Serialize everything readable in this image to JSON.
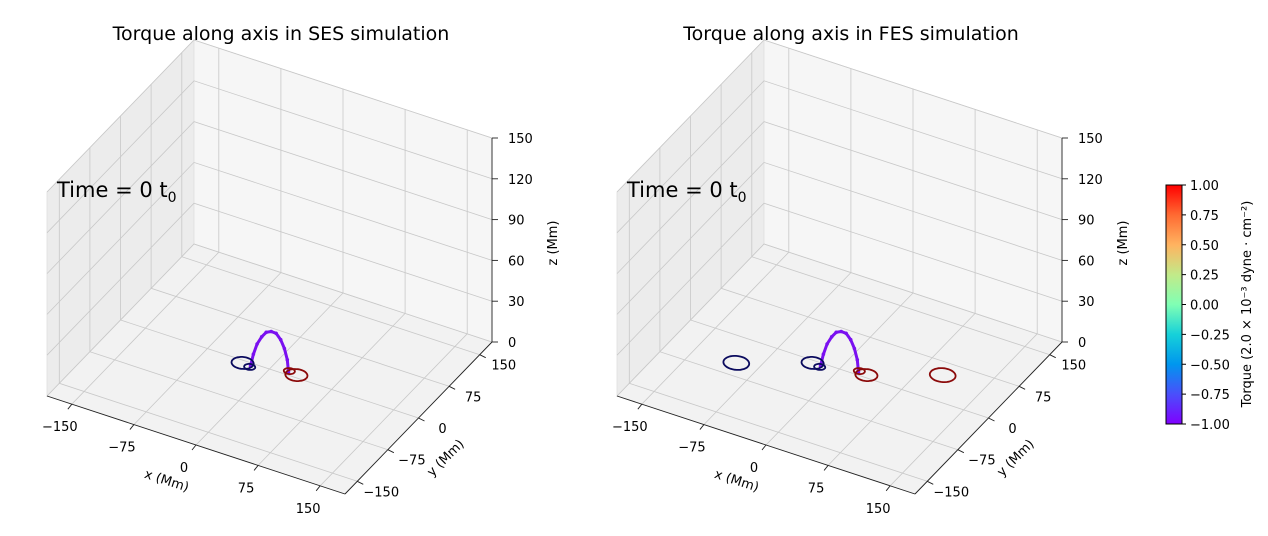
{
  "chart_data": [
    {
      "type": "3d-line",
      "title": "Torque along axis in SES simulation",
      "time_label": "Time = 0 t",
      "time_subscript": "0",
      "xlabel": "x (Mm)",
      "ylabel": "y (Mm)",
      "zlabel": "z (Mm)",
      "x_ticks": [
        "−150",
        "−75",
        "0",
        "75",
        "150"
      ],
      "y_ticks": [
        "−150",
        "−75",
        "0",
        "75",
        "150"
      ],
      "z_ticks": [
        "0",
        "30",
        "60",
        "90",
        "120",
        "150"
      ],
      "xlim": [
        -180,
        180
      ],
      "ylim": [
        -180,
        180
      ],
      "zlim": [
        0,
        150
      ],
      "grid": true,
      "series": [
        {
          "kind": "flux-tube-axis",
          "color": "#7a10f0",
          "torque": -1.0,
          "x": [
            -20,
            -17,
            -13,
            -8,
            -3,
            2,
            7,
            12,
            16,
            19,
            20
          ],
          "y": [
            -6,
            -5,
            -4,
            -3,
            -2,
            0,
            2,
            3,
            4,
            5,
            6
          ],
          "z": [
            0,
            9,
            17,
            23,
            27,
            28,
            27,
            23,
            17,
            9,
            0
          ]
        },
        {
          "kind": "footpoint-ring",
          "color": "#0b0b5e",
          "x": -30,
          "y": -5,
          "z": 0,
          "r": 12
        },
        {
          "kind": "footpoint-ring",
          "color": "#0b0b5e",
          "x": -20,
          "y": -8,
          "z": 0,
          "r": 6
        },
        {
          "kind": "footpoint-ring",
          "color": "#8b0a0a",
          "x": 30,
          "y": 5,
          "z": 0,
          "r": 12
        },
        {
          "kind": "footpoint-ring",
          "color": "#8b0a0a",
          "x": 20,
          "y": 8,
          "z": 0,
          "r": 6
        }
      ]
    },
    {
      "type": "3d-line",
      "title": "Torque along axis in FES simulation",
      "time_label": "Time = 0 t",
      "time_subscript": "0",
      "xlabel": "x (Mm)",
      "ylabel": "y (Mm)",
      "zlabel": "z (Mm)",
      "x_ticks": [
        "−150",
        "−75",
        "0",
        "75",
        "150"
      ],
      "y_ticks": [
        "−150",
        "−75",
        "0",
        "75",
        "150"
      ],
      "z_ticks": [
        "0",
        "30",
        "60",
        "90",
        "120",
        "150"
      ],
      "xlim": [
        -180,
        180
      ],
      "ylim": [
        -180,
        180
      ],
      "zlim": [
        0,
        150
      ],
      "grid": true,
      "series": [
        {
          "kind": "flux-tube-axis",
          "color": "#7a10f0",
          "torque": -1.0,
          "x": [
            -20,
            -17,
            -13,
            -8,
            -3,
            2,
            7,
            12,
            16,
            19,
            20
          ],
          "y": [
            -6,
            -5,
            -4,
            -3,
            -2,
            0,
            2,
            3,
            4,
            5,
            6
          ],
          "z": [
            0,
            9,
            17,
            23,
            27,
            28,
            27,
            23,
            17,
            9,
            0
          ]
        },
        {
          "kind": "footpoint-ring",
          "color": "#0b0b5e",
          "x": -30,
          "y": -5,
          "z": 0,
          "r": 12
        },
        {
          "kind": "footpoint-ring",
          "color": "#0b0b5e",
          "x": -20,
          "y": -8,
          "z": 0,
          "r": 6
        },
        {
          "kind": "footpoint-ring",
          "color": "#8b0a0a",
          "x": 30,
          "y": 5,
          "z": 0,
          "r": 12
        },
        {
          "kind": "footpoint-ring",
          "color": "#8b0a0a",
          "x": 20,
          "y": 8,
          "z": 0,
          "r": 6
        },
        {
          "kind": "footpoint-ring",
          "color": "#0b0b5e",
          "x": -100,
          "y": -50,
          "z": 0,
          "r": 14
        },
        {
          "kind": "footpoint-ring",
          "color": "#8b0a0a",
          "x": 100,
          "y": 50,
          "z": 0,
          "r": 14
        }
      ]
    }
  ],
  "colorbar": {
    "label": "Torque (2.0 × 10⁻³ dyne · cm⁻²)",
    "cmap": "rainbow",
    "min": -1.0,
    "max": 1.0,
    "ticks": [
      "1.00",
      "0.75",
      "0.50",
      "0.25",
      "0.00",
      "−0.25",
      "−0.50",
      "−0.75",
      "−1.00"
    ]
  }
}
